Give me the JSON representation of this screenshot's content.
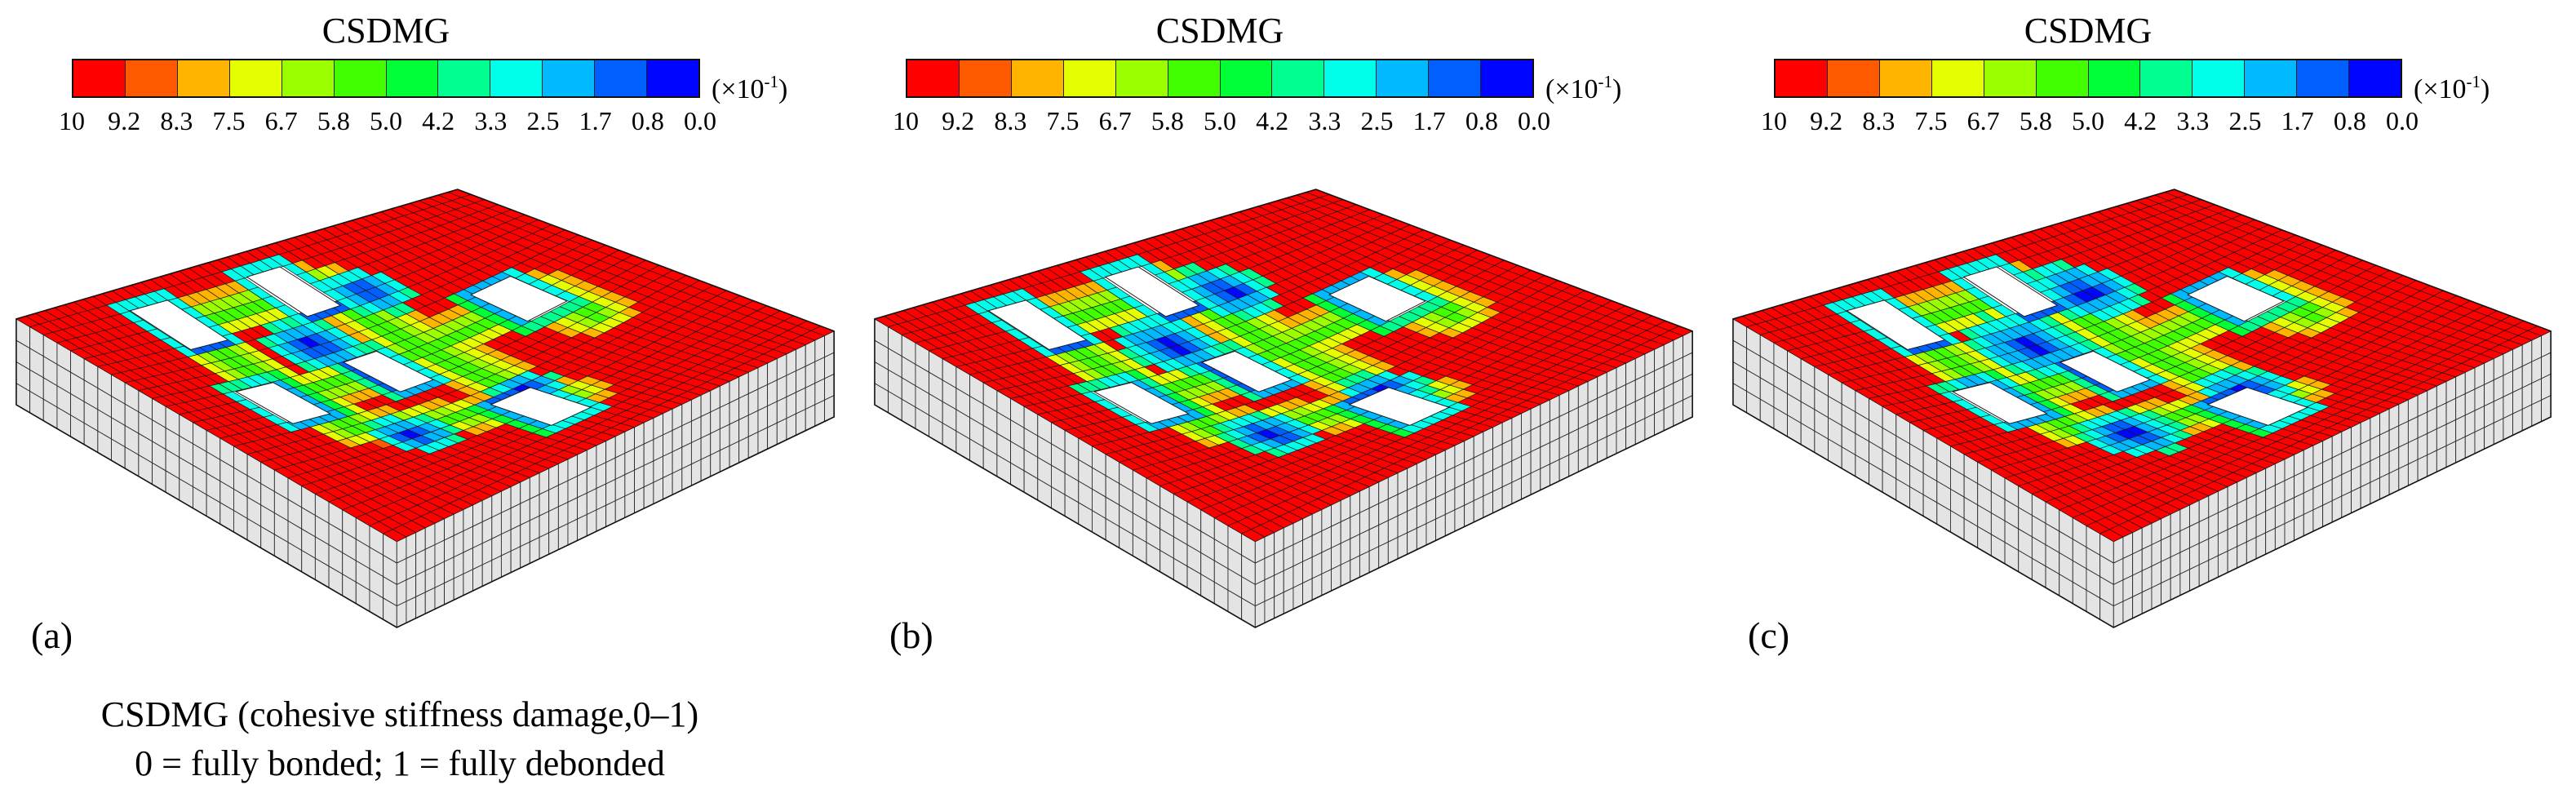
{
  "legend": {
    "title": "CSDMG",
    "unit_base": "(×10",
    "unit_exp": "-1",
    "unit_close": ")",
    "ticks": [
      "10",
      "9.2",
      "8.3",
      "7.5",
      "6.7",
      "5.8",
      "5.0",
      "4.2",
      "3.3",
      "2.5",
      "1.7",
      "0.8",
      "0.0"
    ],
    "colors": [
      "#ff0000",
      "#ff5a00",
      "#ffb400",
      "#e6ff00",
      "#9bff00",
      "#41ff00",
      "#00ff37",
      "#00ff91",
      "#00ffeb",
      "#00b9ff",
      "#005fff",
      "#0005ff"
    ]
  },
  "panels": [
    {
      "label": "(a)"
    },
    {
      "label": "(b)"
    },
    {
      "label": "(c)"
    }
  ],
  "caption": {
    "line1": "CSDMG (cohesive stiffness damage,0–1)",
    "line2": "0 = fully bonded; 1 = fully debonded"
  }
}
